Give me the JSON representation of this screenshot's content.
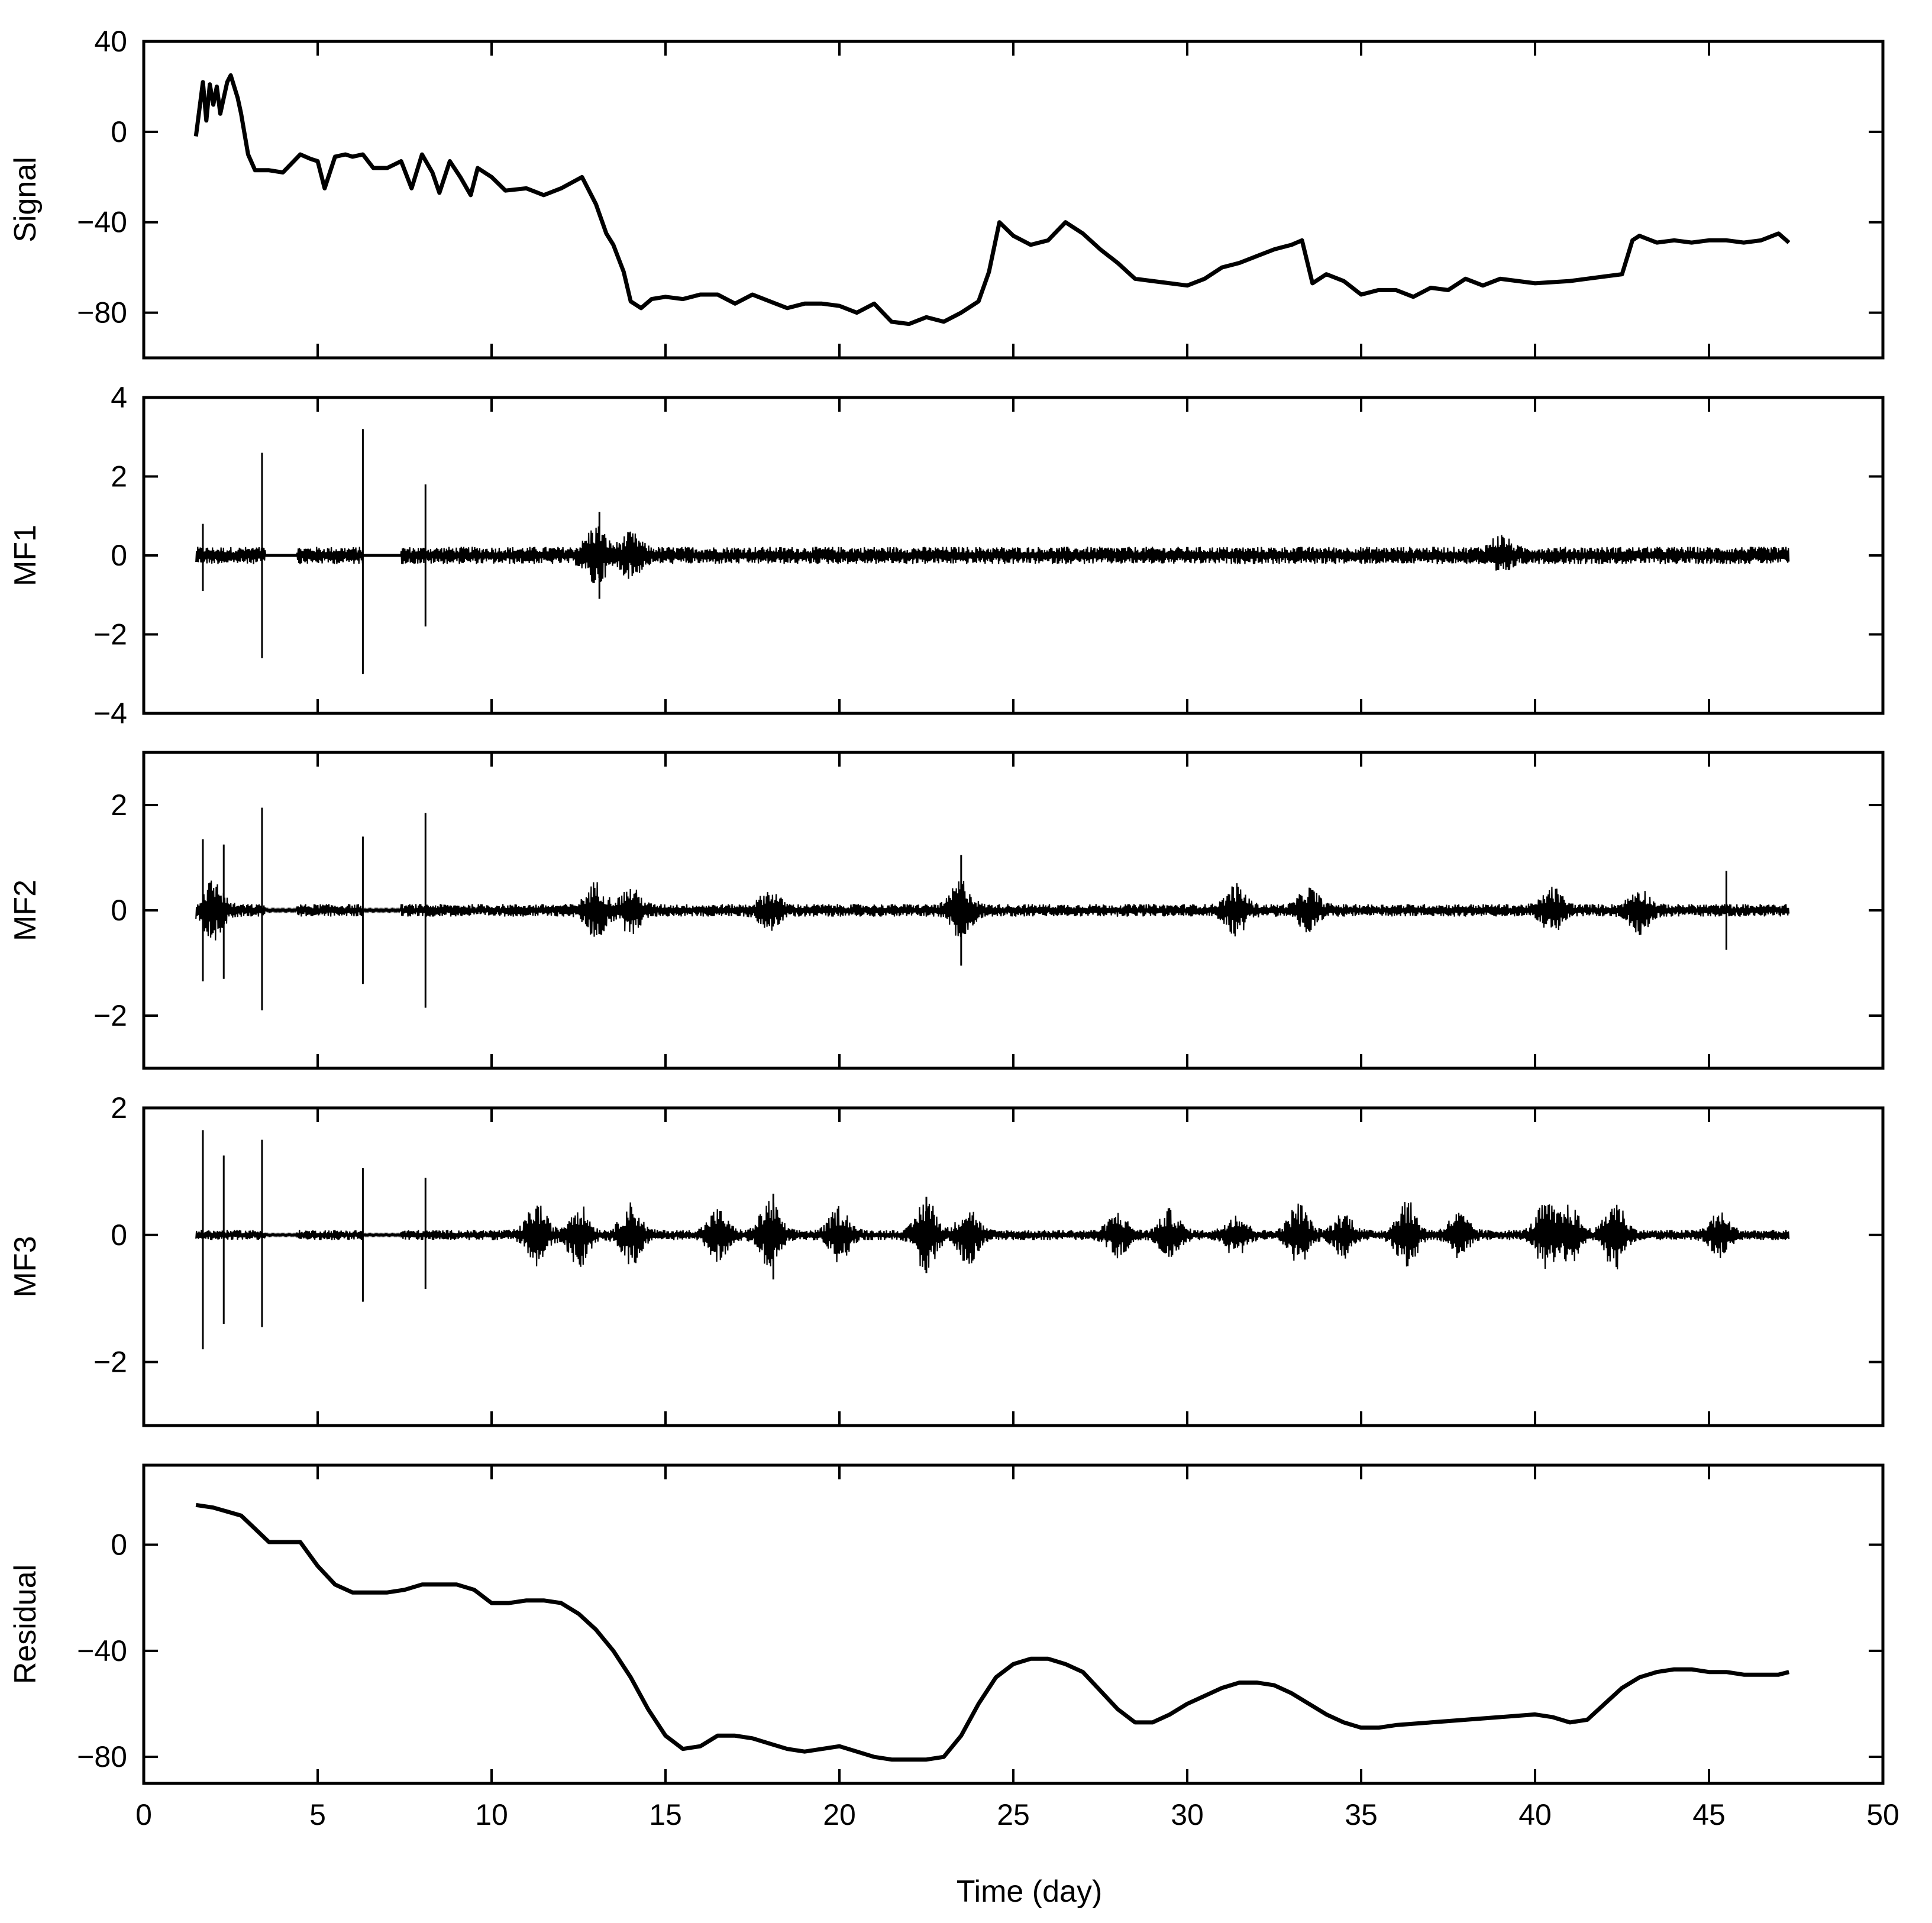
{
  "chart_data": {
    "type": "line",
    "x_axis": {
      "label": "Time (day)",
      "lim": [
        0,
        50
      ],
      "ticks": [
        0,
        5,
        10,
        15,
        20,
        25,
        30,
        35,
        40,
        45,
        50
      ]
    },
    "grid": false,
    "panels": [
      {
        "id": "signal",
        "ylabel": "Signal",
        "ylim": [
          -100,
          40
        ],
        "yticks": [
          40,
          0,
          -40,
          -80
        ],
        "style": "bold-line",
        "x": [
          1.5,
          1.7,
          1.8,
          1.9,
          2.0,
          2.1,
          2.2,
          2.3,
          2.4,
          2.5,
          2.6,
          2.7,
          2.8,
          3.0,
          3.2,
          3.4,
          3.5,
          3.6,
          4.0,
          4.5,
          4.8,
          5.0,
          5.2,
          5.5,
          5.8,
          6.0,
          6.3,
          6.6,
          7.0,
          7.4,
          7.7,
          8.0,
          8.3,
          8.5,
          8.8,
          9.1,
          9.4,
          9.6,
          10.0,
          10.4,
          11.0,
          11.5,
          12.0,
          12.6,
          13.0,
          13.3,
          13.5,
          13.8,
          14.0,
          14.3,
          14.6,
          15.0,
          15.5,
          16.0,
          16.5,
          17.0,
          17.5,
          18.0,
          18.5,
          19.0,
          19.5,
          20.0,
          20.5,
          21.0,
          21.5,
          22.0,
          22.5,
          23.0,
          23.5,
          24.0,
          24.3,
          24.6,
          25.0,
          25.5,
          26.0,
          26.5,
          27.0,
          27.5,
          28.0,
          28.5,
          29.0,
          29.5,
          30.0,
          30.5,
          31.0,
          31.5,
          32.0,
          32.5,
          33.0,
          33.3,
          33.6,
          34.0,
          34.5,
          35.0,
          35.5,
          36.0,
          36.5,
          37.0,
          37.5,
          38.0,
          38.5,
          39.0,
          40.0,
          41.0,
          42.0,
          42.5,
          42.8,
          43.0,
          43.5,
          44.0,
          44.5,
          45.0,
          45.5,
          46.0,
          46.5,
          47.0,
          47.3
        ],
        "y": [
          -2,
          22,
          5,
          21,
          12,
          20,
          8,
          15,
          22,
          25,
          20,
          15,
          8,
          -10,
          -17,
          -17,
          -17,
          -17,
          -18,
          -10,
          -12,
          -13,
          -25,
          -11,
          -10,
          -11,
          -10,
          -16,
          -16,
          -13,
          -25,
          -10,
          -18,
          -27,
          -13,
          -20,
          -28,
          -16,
          -20,
          -26,
          -25,
          -28,
          -25,
          -20,
          -32,
          -45,
          -50,
          -62,
          -75,
          -78,
          -74,
          -73,
          -74,
          -72,
          -72,
          -76,
          -72,
          -75,
          -78,
          -76,
          -76,
          -77,
          -80,
          -76,
          -84,
          -85,
          -82,
          -84,
          -80,
          -75,
          -62,
          -40,
          -46,
          -50,
          -48,
          -40,
          -45,
          -52,
          -58,
          -65,
          -66,
          -67,
          -68,
          -65,
          -60,
          -58,
          -55,
          -52,
          -50,
          -48,
          -67,
          -63,
          -66,
          -72,
          -70,
          -70,
          -73,
          -69,
          -70,
          -65,
          -68,
          -65,
          -67,
          -66,
          -64,
          -63,
          -48,
          -46,
          -49,
          -48,
          -49,
          -48,
          -48,
          -49,
          -48,
          -45,
          -49
        ]
      },
      {
        "id": "mf1",
        "ylabel": "MF1",
        "ylim": [
          -4,
          4
        ],
        "yticks": [
          4,
          2,
          0,
          -2,
          -4
        ],
        "style": "oscillation",
        "x_start": 1.5,
        "x_end": 47.3,
        "base_amplitude": 0.22,
        "gaps": [
          [
            3.5,
            4.4
          ],
          [
            6.3,
            7.4
          ]
        ],
        "spikes": [
          {
            "x": 1.7,
            "up": 0.8,
            "down": -0.9
          },
          {
            "x": 3.4,
            "up": 2.6,
            "down": -2.6
          },
          {
            "x": 6.3,
            "up": 3.2,
            "down": -3.0
          },
          {
            "x": 8.1,
            "up": 1.8,
            "down": -1.8
          },
          {
            "x": 13.1,
            "up": 1.1,
            "down": -1.1
          }
        ],
        "bursts": [
          {
            "x": 13.0,
            "amp": 0.6
          },
          {
            "x": 14.0,
            "amp": 0.4
          },
          {
            "x": 39.0,
            "amp": 0.35
          }
        ]
      },
      {
        "id": "mf2",
        "ylabel": "MF2",
        "ylim": [
          -3,
          3
        ],
        "yticks": [
          2,
          0,
          -2
        ],
        "style": "oscillation",
        "x_start": 1.5,
        "x_end": 47.3,
        "base_amplitude": 0.12,
        "gaps": [
          [
            3.5,
            4.4
          ],
          [
            6.3,
            7.4
          ]
        ],
        "spikes": [
          {
            "x": 1.7,
            "up": 1.35,
            "down": -1.35
          },
          {
            "x": 2.3,
            "up": 1.25,
            "down": -1.3
          },
          {
            "x": 3.4,
            "up": 1.95,
            "down": -1.9
          },
          {
            "x": 6.3,
            "up": 1.4,
            "down": -1.4
          },
          {
            "x": 8.1,
            "up": 1.85,
            "down": -1.85
          },
          {
            "x": 23.5,
            "up": 1.05,
            "down": -1.05
          },
          {
            "x": 45.5,
            "up": 0.75,
            "down": -0.75
          }
        ],
        "bursts": [
          {
            "x": 2.0,
            "amp": 0.5
          },
          {
            "x": 13.0,
            "amp": 0.45
          },
          {
            "x": 14.0,
            "amp": 0.35
          },
          {
            "x": 18.0,
            "amp": 0.3
          },
          {
            "x": 23.5,
            "amp": 0.5
          },
          {
            "x": 31.4,
            "amp": 0.4
          },
          {
            "x": 33.5,
            "amp": 0.35
          },
          {
            "x": 40.5,
            "amp": 0.35
          },
          {
            "x": 43.0,
            "amp": 0.35
          }
        ]
      },
      {
        "id": "mf3",
        "ylabel": "MF3",
        "ylim": [
          -3,
          2
        ],
        "yticks": [
          2,
          0,
          -2
        ],
        "style": "oscillation",
        "x_start": 1.5,
        "x_end": 47.3,
        "base_amplitude": 0.08,
        "gaps": [
          [
            3.5,
            4.4
          ],
          [
            6.3,
            7.4
          ]
        ],
        "spikes": [
          {
            "x": 1.7,
            "up": 1.65,
            "down": -1.8
          },
          {
            "x": 2.3,
            "up": 1.25,
            "down": -1.4
          },
          {
            "x": 3.4,
            "up": 1.5,
            "down": -1.45
          },
          {
            "x": 6.3,
            "up": 1.05,
            "down": -1.05
          },
          {
            "x": 8.1,
            "up": 0.9,
            "down": -0.85
          },
          {
            "x": 18.1,
            "up": 0.65,
            "down": -0.7
          },
          {
            "x": 22.5,
            "up": 0.6,
            "down": -0.6
          }
        ],
        "bursts": [
          {
            "x": 11.3,
            "amp": 0.45
          },
          {
            "x": 12.5,
            "amp": 0.45
          },
          {
            "x": 14.0,
            "amp": 0.45
          },
          {
            "x": 16.5,
            "amp": 0.35
          },
          {
            "x": 18.0,
            "amp": 0.5
          },
          {
            "x": 20.0,
            "amp": 0.4
          },
          {
            "x": 22.5,
            "amp": 0.55
          },
          {
            "x": 23.7,
            "amp": 0.4
          },
          {
            "x": 28.0,
            "amp": 0.3
          },
          {
            "x": 29.5,
            "amp": 0.35
          },
          {
            "x": 31.4,
            "amp": 0.3
          },
          {
            "x": 33.2,
            "amp": 0.45
          },
          {
            "x": 34.5,
            "amp": 0.3
          },
          {
            "x": 36.3,
            "amp": 0.5
          },
          {
            "x": 37.8,
            "amp": 0.3
          },
          {
            "x": 40.3,
            "amp": 0.45
          },
          {
            "x": 41.0,
            "amp": 0.4
          },
          {
            "x": 42.3,
            "amp": 0.5
          },
          {
            "x": 45.3,
            "amp": 0.3
          }
        ]
      },
      {
        "id": "residual",
        "ylabel": "Residual",
        "ylim": [
          -90,
          30
        ],
        "yticks": [
          0,
          -40,
          -80
        ],
        "style": "bold-line",
        "x": [
          1.5,
          2.0,
          2.8,
          3.2,
          3.6,
          4.0,
          4.5,
          5.0,
          5.5,
          6.0,
          6.5,
          7.0,
          7.5,
          8.0,
          8.5,
          9.0,
          9.5,
          10.0,
          10.5,
          11.0,
          11.5,
          12.0,
          12.5,
          13.0,
          13.5,
          14.0,
          14.5,
          15.0,
          15.5,
          16.0,
          16.5,
          17.0,
          17.5,
          18.0,
          18.5,
          19.0,
          19.5,
          20.0,
          20.5,
          21.0,
          21.5,
          22.0,
          22.5,
          23.0,
          23.5,
          24.0,
          24.5,
          25.0,
          25.5,
          26.0,
          26.5,
          27.0,
          27.5,
          28.0,
          28.5,
          29.0,
          29.5,
          30.0,
          30.5,
          31.0,
          31.5,
          32.0,
          32.5,
          33.0,
          33.5,
          34.0,
          34.5,
          35.0,
          35.5,
          36.0,
          37.0,
          38.0,
          39.0,
          40.0,
          40.5,
          41.0,
          41.5,
          42.0,
          42.5,
          43.0,
          43.5,
          44.0,
          44.5,
          45.0,
          45.5,
          46.0,
          46.5,
          47.0,
          47.3
        ],
        "y": [
          15,
          14,
          11,
          6,
          1,
          1,
          1,
          -8,
          -15,
          -18,
          -18,
          -18,
          -17,
          -15,
          -15,
          -15,
          -17,
          -22,
          -22,
          -21,
          -21,
          -22,
          -26,
          -32,
          -40,
          -50,
          -62,
          -72,
          -77,
          -76,
          -72,
          -72,
          -73,
          -75,
          -77,
          -78,
          -77,
          -76,
          -78,
          -80,
          -81,
          -81,
          -81,
          -80,
          -72,
          -60,
          -50,
          -45,
          -43,
          -43,
          -45,
          -48,
          -55,
          -62,
          -67,
          -67,
          -64,
          -60,
          -57,
          -54,
          -52,
          -52,
          -53,
          -56,
          -60,
          -64,
          -67,
          -69,
          -69,
          -68,
          -67,
          -66,
          -65,
          -64,
          -65,
          -67,
          -66,
          -60,
          -54,
          -50,
          -48,
          -47,
          -47,
          -48,
          -48,
          -49,
          -49,
          -49,
          -48
        ]
      }
    ]
  }
}
